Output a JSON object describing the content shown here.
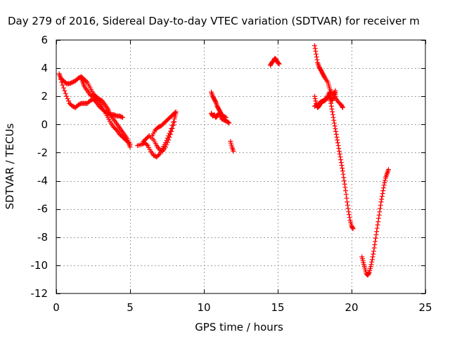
{
  "chart_data": {
    "type": "scatter",
    "title": "Day 279 of 2016, Sidereal Day-to-day VTEC variation (SDTVAR) for receiver m",
    "xlabel": "GPS time / hours",
    "ylabel": "SDTVAR / TECUs",
    "xlim": [
      0,
      25
    ],
    "ylim": [
      -12,
      6
    ],
    "xticks": [
      0,
      5,
      10,
      15,
      20,
      25
    ],
    "yticks": [
      6,
      4,
      2,
      0,
      -2,
      -4,
      -6,
      -8,
      -10,
      -12
    ],
    "grid": true,
    "marker": "+",
    "color": "#ff0000",
    "series": [
      {
        "segments": [
          [
            [
              0.2,
              3.6
            ],
            [
              0.3,
              3.3
            ],
            [
              0.5,
              3.1
            ],
            [
              0.7,
              2.9
            ],
            [
              0.9,
              2.9
            ],
            [
              1.1,
              3.0
            ],
            [
              1.3,
              3.1
            ],
            [
              1.5,
              3.3
            ],
            [
              1.7,
              3.4
            ],
            [
              1.9,
              3.2
            ],
            [
              2.1,
              3.0
            ],
            [
              2.3,
              2.6
            ],
            [
              2.5,
              2.2
            ],
            [
              2.7,
              2.0
            ],
            [
              2.9,
              1.7
            ],
            [
              3.1,
              1.3
            ],
            [
              3.3,
              0.9
            ],
            [
              3.5,
              0.5
            ],
            [
              3.7,
              0.1
            ],
            [
              3.9,
              -0.2
            ],
            [
              4.1,
              -0.4
            ],
            [
              4.3,
              -0.7
            ],
            [
              4.5,
              -0.9
            ],
            [
              4.7,
              -1.1
            ],
            [
              4.9,
              -1.3
            ],
            [
              5.0,
              -1.6
            ]
          ],
          [
            [
              0.3,
              3.2
            ],
            [
              0.5,
              2.6
            ],
            [
              0.7,
              2.0
            ],
            [
              0.9,
              1.5
            ],
            [
              1.1,
              1.3
            ],
            [
              1.3,
              1.2
            ],
            [
              1.5,
              1.4
            ],
            [
              1.7,
              1.5
            ],
            [
              1.9,
              1.5
            ],
            [
              2.1,
              1.5
            ],
            [
              2.3,
              1.7
            ],
            [
              2.5,
              1.8
            ],
            [
              2.7,
              1.6
            ],
            [
              2.9,
              1.3
            ],
            [
              3.1,
              1.1
            ],
            [
              3.3,
              0.9
            ],
            [
              3.5,
              0.8
            ],
            [
              3.7,
              0.7
            ],
            [
              3.9,
              0.7
            ],
            [
              4.1,
              0.6
            ],
            [
              4.3,
              0.6
            ],
            [
              4.5,
              0.5
            ]
          ],
          [
            [
              1.7,
              3.3
            ],
            [
              1.8,
              3.0
            ],
            [
              1.9,
              2.7
            ],
            [
              2.1,
              2.4
            ],
            [
              2.3,
              2.1
            ],
            [
              2.5,
              2.0
            ],
            [
              2.7,
              1.9
            ],
            [
              2.9,
              1.8
            ],
            [
              3.1,
              1.7
            ],
            [
              3.3,
              1.4
            ],
            [
              3.5,
              1.1
            ],
            [
              3.6,
              0.8
            ],
            [
              3.8,
              0.5
            ],
            [
              4.0,
              0.2
            ],
            [
              4.2,
              -0.1
            ],
            [
              4.4,
              -0.4
            ],
            [
              4.6,
              -0.7
            ],
            [
              4.8,
              -1.0
            ],
            [
              5.0,
              -1.4
            ]
          ],
          [
            [
              5.5,
              -1.5
            ],
            [
              5.8,
              -1.4
            ],
            [
              6.0,
              -1.3
            ],
            [
              6.2,
              -1.5
            ],
            [
              6.4,
              -1.9
            ],
            [
              6.6,
              -2.2
            ],
            [
              6.8,
              -2.3
            ],
            [
              7.0,
              -2.1
            ],
            [
              7.2,
              -1.7
            ],
            [
              7.4,
              -1.3
            ],
            [
              7.6,
              -0.8
            ],
            [
              7.8,
              -0.3
            ],
            [
              8.0,
              0.4
            ],
            [
              8.1,
              0.8
            ]
          ],
          [
            [
              5.9,
              -1.2
            ],
            [
              6.1,
              -1.0
            ],
            [
              6.3,
              -0.8
            ],
            [
              6.6,
              -1.1
            ],
            [
              6.8,
              -1.5
            ],
            [
              7.0,
              -1.8
            ],
            [
              7.2,
              -1.9
            ],
            [
              7.4,
              -1.6
            ],
            [
              7.6,
              -1.1
            ],
            [
              7.8,
              -0.5
            ],
            [
              8.0,
              0.2
            ]
          ],
          [
            [
              6.5,
              -0.8
            ],
            [
              6.7,
              -0.4
            ],
            [
              6.9,
              -0.2
            ],
            [
              7.1,
              -0.1
            ],
            [
              7.3,
              0.1
            ],
            [
              7.5,
              0.3
            ],
            [
              7.7,
              0.5
            ],
            [
              7.9,
              0.7
            ],
            [
              8.1,
              0.9
            ]
          ],
          [
            [
              10.5,
              0.8
            ],
            [
              10.6,
              0.6
            ],
            [
              10.7,
              0.7
            ],
            [
              10.8,
              0.5
            ],
            [
              10.9,
              0.6
            ],
            [
              11.0,
              0.8
            ],
            [
              11.1,
              0.7
            ],
            [
              11.2,
              0.4
            ],
            [
              11.4,
              0.3
            ],
            [
              11.6,
              0.2
            ],
            [
              11.7,
              0.1
            ]
          ],
          [
            [
              10.5,
              2.3
            ],
            [
              10.6,
              2.0
            ],
            [
              10.7,
              1.8
            ],
            [
              10.8,
              1.6
            ],
            [
              10.9,
              1.3
            ],
            [
              11.0,
              1.1
            ],
            [
              11.1,
              0.9
            ],
            [
              11.2,
              0.7
            ],
            [
              11.3,
              0.6
            ],
            [
              11.5,
              0.5
            ]
          ],
          [
            [
              11.8,
              -1.2
            ],
            [
              11.9,
              -1.6
            ],
            [
              12.0,
              -1.9
            ]
          ],
          [
            [
              14.5,
              4.2
            ],
            [
              14.6,
              4.4
            ],
            [
              14.7,
              4.5
            ],
            [
              14.8,
              4.7
            ],
            [
              14.9,
              4.6
            ],
            [
              15.0,
              4.4
            ],
            [
              15.1,
              4.3
            ]
          ],
          [
            [
              17.5,
              5.6
            ],
            [
              17.6,
              5.0
            ],
            [
              17.7,
              4.4
            ],
            [
              17.8,
              4.1
            ],
            [
              17.9,
              3.9
            ],
            [
              18.0,
              3.7
            ],
            [
              18.1,
              3.5
            ],
            [
              18.2,
              3.3
            ],
            [
              18.4,
              3.0
            ],
            [
              18.5,
              2.6
            ],
            [
              18.7,
              2.2
            ],
            [
              18.9,
              1.9
            ],
            [
              19.1,
              1.6
            ],
            [
              19.3,
              1.4
            ],
            [
              19.4,
              1.2
            ]
          ],
          [
            [
              17.5,
              2.0
            ],
            [
              17.6,
              1.5
            ],
            [
              17.7,
              1.2
            ],
            [
              17.8,
              1.3
            ],
            [
              17.9,
              1.5
            ],
            [
              18.0,
              1.6
            ],
            [
              18.2,
              1.7
            ],
            [
              18.4,
              1.9
            ],
            [
              18.5,
              2.1
            ],
            [
              18.6,
              1.8
            ],
            [
              18.7,
              1.7
            ],
            [
              18.8,
              2.1
            ],
            [
              18.9,
              2.4
            ],
            [
              18.9,
              2.0
            ]
          ],
          [
            [
              17.5,
              1.3
            ],
            [
              17.7,
              1.4
            ],
            [
              17.9,
              1.6
            ],
            [
              18.1,
              1.7
            ],
            [
              18.3,
              1.9
            ],
            [
              18.5,
              2.3
            ],
            [
              18.6,
              2.1
            ]
          ],
          [
            [
              18.5,
              2.0
            ],
            [
              18.6,
              1.5
            ],
            [
              18.7,
              0.9
            ],
            [
              18.8,
              0.3
            ],
            [
              18.9,
              -0.3
            ],
            [
              19.0,
              -0.9
            ],
            [
              19.1,
              -1.5
            ],
            [
              19.2,
              -2.1
            ],
            [
              19.3,
              -2.7
            ],
            [
              19.4,
              -3.3
            ],
            [
              19.5,
              -4.0
            ],
            [
              19.6,
              -4.7
            ],
            [
              19.7,
              -5.5
            ],
            [
              19.8,
              -6.2
            ],
            [
              19.9,
              -6.8
            ],
            [
              20.0,
              -7.2
            ],
            [
              20.1,
              -7.4
            ]
          ],
          [
            [
              20.7,
              -9.4
            ],
            [
              20.8,
              -9.8
            ],
            [
              20.9,
              -10.2
            ],
            [
              21.0,
              -10.6
            ],
            [
              21.1,
              -10.7
            ],
            [
              21.2,
              -10.5
            ],
            [
              21.3,
              -10.1
            ],
            [
              21.4,
              -9.6
            ],
            [
              21.5,
              -9.0
            ],
            [
              21.6,
              -8.3
            ],
            [
              21.7,
              -7.6
            ],
            [
              21.8,
              -6.9
            ],
            [
              21.9,
              -6.2
            ],
            [
              22.0,
              -5.5
            ],
            [
              22.1,
              -4.9
            ],
            [
              22.2,
              -4.3
            ],
            [
              22.3,
              -3.8
            ],
            [
              22.4,
              -3.5
            ],
            [
              22.5,
              -3.2
            ]
          ]
        ]
      }
    ]
  }
}
